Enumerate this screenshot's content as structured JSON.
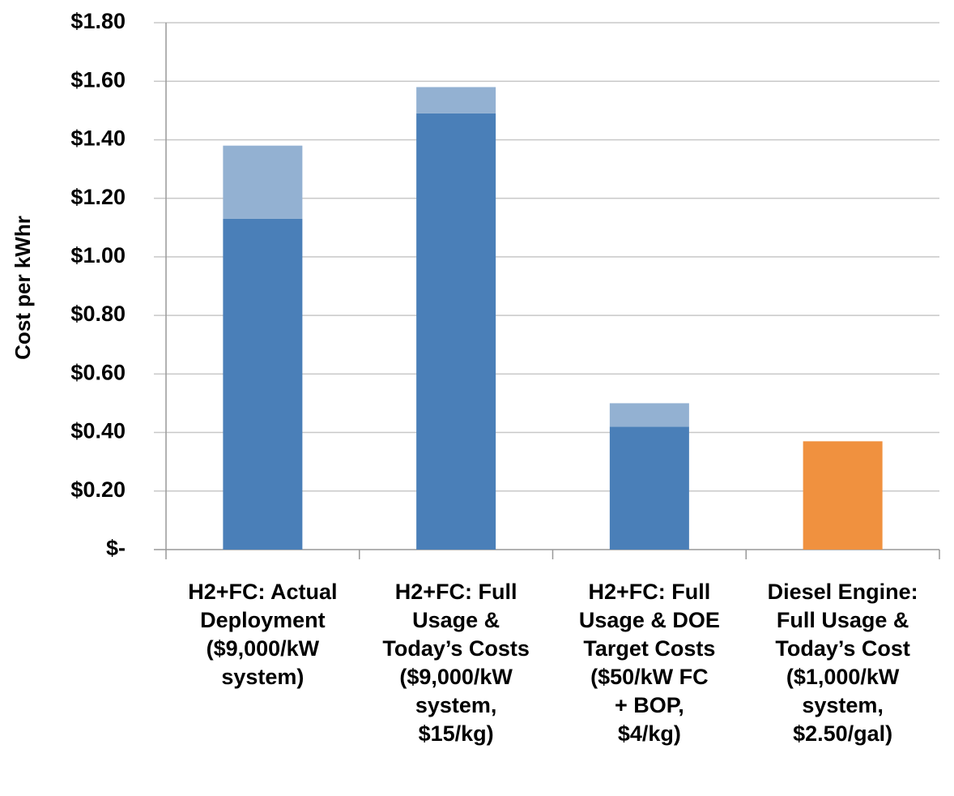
{
  "chart_data": {
    "type": "stacked-bar",
    "y_label": "Cost per kWhr",
    "categories": [
      [
        "H2+FC: Actual",
        "Deployment",
        "($9,000/kW",
        "system)"
      ],
      [
        "H2+FC: Full",
        "Usage &",
        "Today’s Costs",
        "($9,000/kW",
        "system,",
        "$15/kg)"
      ],
      [
        "H2+FC: Full",
        "Usage & DOE",
        "Target Costs",
        "($50/kW FC",
        "+ BOP,",
        "$4/kg)"
      ],
      [
        "Diesel Engine:",
        "Full Usage &",
        "Today’s Cost",
        "($1,000/kW",
        "system,",
        "$2.50/gal)"
      ]
    ],
    "series": [
      {
        "color": "#4a7fb8",
        "colors": [
          "#4a7fb8",
          "#4a7fb8",
          "#4a7fb8",
          "#f0913f"
        ],
        "values": [
          1.13,
          1.49,
          0.42,
          0.37
        ]
      },
      {
        "color": "#93b1d2",
        "values": [
          0.25,
          0.09,
          0.08,
          null
        ]
      }
    ],
    "ylim": [
      0,
      1.8
    ],
    "yticks": [
      {
        "value": 0,
        "label": "$-"
      },
      {
        "value": 0.2,
        "label": "$0.20"
      },
      {
        "value": 0.4,
        "label": "$0.40"
      },
      {
        "value": 0.6,
        "label": "$0.60"
      },
      {
        "value": 0.8,
        "label": "$0.80"
      },
      {
        "value": 1.0,
        "label": "$1.00"
      },
      {
        "value": 1.2,
        "label": "$1.20"
      },
      {
        "value": 1.4,
        "label": "$1.40"
      },
      {
        "value": 1.6,
        "label": "$1.60"
      },
      {
        "value": 1.8,
        "label": "$1.80"
      }
    ],
    "grid": true
  }
}
